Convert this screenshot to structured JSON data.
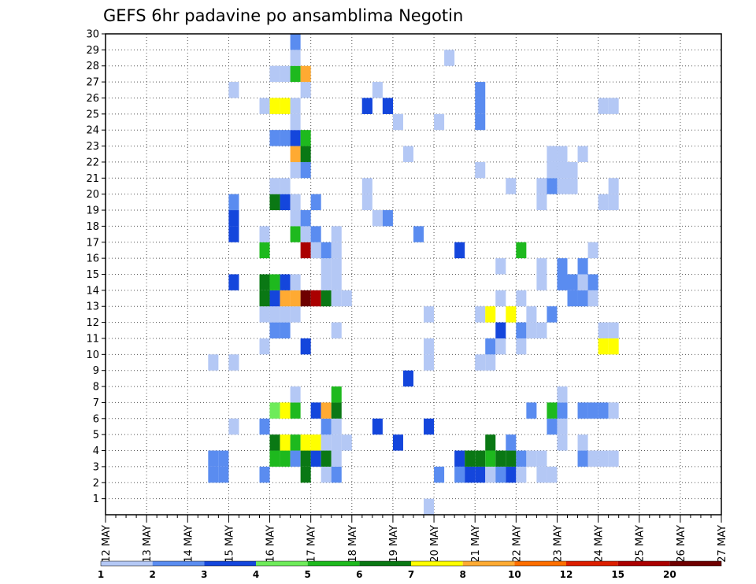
{
  "chart_data": {
    "type": "heatmap",
    "title": "GEFS 6hr padavine po ansamblima Negotin",
    "xlabel": "",
    "ylabel": "",
    "x_ticks": [
      "12 MAY",
      "13 MAY",
      "14 MAY",
      "15 MAY",
      "16 MAY",
      "17 MAY",
      "18 MAY",
      "19 MAY",
      "20 MAY",
      "21 MAY",
      "22 MAY",
      "23 MAY",
      "24 MAY",
      "25 MAY",
      "26 MAY",
      "27 MAY"
    ],
    "y_ticks": [
      "1",
      "2",
      "3",
      "4",
      "5",
      "6",
      "7",
      "8",
      "9",
      "10",
      "11",
      "12",
      "13",
      "14",
      "15",
      "16",
      "17",
      "18",
      "19",
      "20",
      "21",
      "22",
      "23",
      "24",
      "25",
      "26",
      "27",
      "28",
      "29",
      "30"
    ],
    "xlim_steps": [
      0,
      60
    ],
    "ylim": [
      0,
      30
    ],
    "x_unit": "6-hour step from 12 MAY 00Z",
    "y_unit": "ensemble member",
    "grid": true,
    "legend": {
      "placement": "bottom",
      "labels": [
        "1",
        "2",
        "3",
        "4",
        "5",
        "6",
        "7",
        "8",
        "10",
        "12",
        "15",
        "20"
      ],
      "colors": [
        "#b4c8f5",
        "#5a8cf0",
        "#1446dc",
        "#6eeb5a",
        "#1eb91e",
        "#0a7814",
        "#ffff00",
        "#ffaa32",
        "#ff6e00",
        "#dc1e00",
        "#aa0000",
        "#6e0000"
      ]
    },
    "cells": [
      [
        10,
        2,
        1
      ],
      [
        10,
        3,
        1
      ],
      [
        11,
        2,
        1
      ],
      [
        11,
        3,
        1
      ],
      [
        10,
        9,
        0
      ],
      [
        12,
        9,
        0
      ],
      [
        12,
        5,
        0
      ],
      [
        12,
        14,
        2
      ],
      [
        12,
        17,
        2
      ],
      [
        12,
        18,
        2
      ],
      [
        12,
        19,
        1
      ],
      [
        12,
        26,
        0
      ],
      [
        15,
        2,
        1
      ],
      [
        15,
        5,
        1
      ],
      [
        15,
        10,
        0
      ],
      [
        15,
        12,
        0
      ],
      [
        15,
        13,
        5
      ],
      [
        15,
        14,
        5
      ],
      [
        15,
        16,
        4
      ],
      [
        15,
        17,
        0
      ],
      [
        15,
        25,
        0
      ],
      [
        16,
        3,
        4
      ],
      [
        16,
        4,
        5
      ],
      [
        16,
        6,
        3
      ],
      [
        16,
        11,
        1
      ],
      [
        16,
        12,
        0
      ],
      [
        16,
        13,
        2
      ],
      [
        16,
        14,
        4
      ],
      [
        16,
        19,
        5
      ],
      [
        16,
        20,
        0
      ],
      [
        16,
        23,
        1
      ],
      [
        16,
        25,
        6
      ],
      [
        16,
        27,
        0
      ],
      [
        17,
        3,
        4
      ],
      [
        17,
        4,
        6
      ],
      [
        17,
        6,
        6
      ],
      [
        17,
        11,
        1
      ],
      [
        17,
        12,
        0
      ],
      [
        17,
        13,
        7
      ],
      [
        17,
        14,
        2
      ],
      [
        17,
        19,
        2
      ],
      [
        17,
        20,
        0
      ],
      [
        17,
        23,
        1
      ],
      [
        17,
        25,
        6
      ],
      [
        17,
        27,
        0
      ],
      [
        18,
        3,
        1
      ],
      [
        18,
        4,
        4
      ],
      [
        18,
        6,
        4
      ],
      [
        18,
        7,
        0
      ],
      [
        18,
        12,
        0
      ],
      [
        18,
        13,
        7
      ],
      [
        18,
        14,
        0
      ],
      [
        18,
        17,
        4
      ],
      [
        18,
        18,
        0
      ],
      [
        18,
        19,
        0
      ],
      [
        18,
        21,
        0
      ],
      [
        18,
        22,
        7
      ],
      [
        18,
        23,
        2
      ],
      [
        18,
        24,
        0
      ],
      [
        18,
        25,
        0
      ],
      [
        18,
        27,
        4
      ],
      [
        18,
        28,
        0
      ],
      [
        18,
        29,
        1
      ],
      [
        19,
        2,
        5
      ],
      [
        19,
        3,
        5
      ],
      [
        19,
        4,
        6
      ],
      [
        19,
        10,
        2
      ],
      [
        19,
        13,
        11
      ],
      [
        19,
        16,
        10
      ],
      [
        19,
        17,
        0
      ],
      [
        19,
        18,
        1
      ],
      [
        19,
        21,
        1
      ],
      [
        19,
        22,
        5
      ],
      [
        19,
        23,
        4
      ],
      [
        19,
        26,
        0
      ],
      [
        19,
        27,
        7
      ],
      [
        20,
        3,
        2
      ],
      [
        20,
        4,
        6
      ],
      [
        20,
        6,
        2
      ],
      [
        20,
        13,
        10
      ],
      [
        20,
        16,
        0
      ],
      [
        20,
        17,
        1
      ],
      [
        20,
        19,
        1
      ],
      [
        21,
        2,
        0
      ],
      [
        21,
        3,
        5
      ],
      [
        21,
        4,
        0
      ],
      [
        21,
        5,
        1
      ],
      [
        21,
        6,
        7
      ],
      [
        21,
        13,
        5
      ],
      [
        21,
        14,
        0
      ],
      [
        21,
        15,
        0
      ],
      [
        21,
        16,
        1
      ],
      [
        22,
        2,
        1
      ],
      [
        22,
        3,
        0
      ],
      [
        22,
        4,
        0
      ],
      [
        22,
        5,
        0
      ],
      [
        22,
        6,
        5
      ],
      [
        22,
        7,
        4
      ],
      [
        22,
        11,
        0
      ],
      [
        22,
        13,
        0
      ],
      [
        22,
        14,
        0
      ],
      [
        22,
        15,
        0
      ],
      [
        22,
        16,
        0
      ],
      [
        22,
        17,
        0
      ],
      [
        23,
        4,
        0
      ],
      [
        23,
        13,
        0
      ],
      [
        25,
        25,
        2
      ],
      [
        25,
        25,
        2
      ],
      [
        25,
        19,
        0
      ],
      [
        25,
        20,
        0
      ],
      [
        26,
        5,
        2
      ],
      [
        26,
        18,
        0
      ],
      [
        26,
        26,
        0
      ],
      [
        27,
        18,
        1
      ],
      [
        27,
        25,
        2
      ],
      [
        27,
        25,
        2
      ],
      [
        28,
        24,
        0
      ],
      [
        28,
        4,
        2
      ],
      [
        29,
        8,
        2
      ],
      [
        29,
        22,
        0
      ],
      [
        30,
        17,
        1
      ],
      [
        31,
        0,
        0
      ],
      [
        31,
        5,
        2
      ],
      [
        31,
        9,
        0
      ],
      [
        31,
        10,
        0
      ],
      [
        31,
        12,
        0
      ],
      [
        32,
        2,
        1
      ],
      [
        32,
        24,
        0
      ],
      [
        33,
        28,
        0
      ],
      [
        34,
        2,
        1
      ],
      [
        34,
        3,
        2
      ],
      [
        34,
        16,
        2
      ],
      [
        35,
        2,
        2
      ],
      [
        35,
        3,
        5
      ],
      [
        36,
        2,
        2
      ],
      [
        36,
        3,
        5
      ],
      [
        36,
        9,
        0
      ],
      [
        36,
        12,
        0
      ],
      [
        36,
        21,
        0
      ],
      [
        36,
        24,
        1
      ],
      [
        36,
        25,
        1
      ],
      [
        36,
        26,
        1
      ],
      [
        37,
        2,
        0
      ],
      [
        37,
        3,
        4
      ],
      [
        37,
        4,
        5
      ],
      [
        37,
        9,
        0
      ],
      [
        37,
        10,
        1
      ],
      [
        37,
        12,
        6
      ],
      [
        38,
        2,
        1
      ],
      [
        38,
        3,
        5
      ],
      [
        38,
        10,
        0
      ],
      [
        38,
        11,
        2
      ],
      [
        38,
        13,
        0
      ],
      [
        38,
        15,
        0
      ],
      [
        39,
        2,
        2
      ],
      [
        39,
        3,
        5
      ],
      [
        39,
        4,
        1
      ],
      [
        39,
        12,
        6
      ],
      [
        39,
        20,
        0
      ],
      [
        40,
        2,
        0
      ],
      [
        40,
        3,
        1
      ],
      [
        40,
        10,
        0
      ],
      [
        40,
        11,
        1
      ],
      [
        40,
        13,
        0
      ],
      [
        40,
        16,
        4
      ],
      [
        41,
        3,
        0
      ],
      [
        41,
        6,
        1
      ],
      [
        41,
        11,
        0
      ],
      [
        41,
        12,
        0
      ],
      [
        42,
        2,
        0
      ],
      [
        42,
        3,
        0
      ],
      [
        42,
        11,
        0
      ],
      [
        42,
        14,
        0
      ],
      [
        42,
        15,
        0
      ],
      [
        42,
        19,
        0
      ],
      [
        42,
        20,
        0
      ],
      [
        43,
        2,
        0
      ],
      [
        43,
        5,
        1
      ],
      [
        43,
        6,
        4
      ],
      [
        43,
        12,
        1
      ],
      [
        43,
        20,
        1
      ],
      [
        43,
        21,
        0
      ],
      [
        43,
        22,
        0
      ],
      [
        44,
        4,
        0
      ],
      [
        44,
        5,
        0
      ],
      [
        44,
        6,
        1
      ],
      [
        44,
        7,
        0
      ],
      [
        44,
        14,
        1
      ],
      [
        44,
        15,
        1
      ],
      [
        44,
        20,
        0
      ],
      [
        44,
        21,
        0
      ],
      [
        44,
        22,
        0
      ],
      [
        45,
        13,
        1
      ],
      [
        45,
        14,
        1
      ],
      [
        45,
        21,
        0
      ],
      [
        45,
        20,
        0
      ],
      [
        46,
        3,
        1
      ],
      [
        46,
        4,
        0
      ],
      [
        46,
        6,
        1
      ],
      [
        46,
        13,
        1
      ],
      [
        46,
        14,
        0
      ],
      [
        46,
        15,
        1
      ],
      [
        46,
        22,
        0
      ],
      [
        47,
        3,
        0
      ],
      [
        47,
        6,
        1
      ],
      [
        47,
        13,
        0
      ],
      [
        47,
        14,
        1
      ],
      [
        47,
        16,
        0
      ],
      [
        48,
        3,
        0
      ],
      [
        48,
        6,
        1
      ],
      [
        48,
        10,
        6
      ],
      [
        48,
        11,
        0
      ],
      [
        48,
        19,
        0
      ],
      [
        48,
        25,
        0
      ],
      [
        49,
        3,
        0
      ],
      [
        49,
        6,
        0
      ],
      [
        49,
        10,
        6
      ],
      [
        49,
        11,
        0
      ],
      [
        49,
        19,
        0
      ],
      [
        49,
        20,
        0
      ],
      [
        49,
        25,
        0
      ]
    ]
  }
}
